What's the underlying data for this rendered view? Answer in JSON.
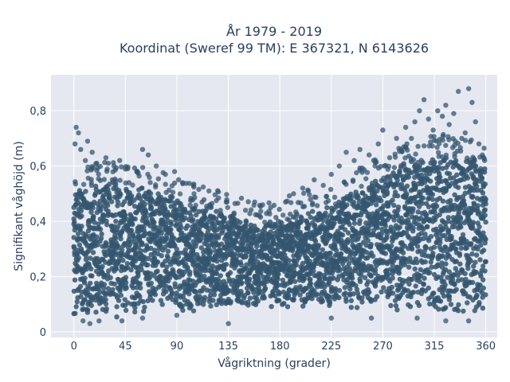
{
  "chart_data": {
    "type": "scatter",
    "title_line1": "År 1979 - 2019",
    "title_line2": "Koordinat (Sweref 99 TM): E 367321, N 6143626",
    "xlabel": "Vågriktning (grader)",
    "ylabel": "Signifikant våghöjd (m)",
    "xlim": [
      -20,
      370
    ],
    "ylim": [
      -0.02,
      0.93
    ],
    "x_ticks": [
      0,
      45,
      90,
      135,
      180,
      225,
      270,
      315,
      360
    ],
    "x_tick_labels": [
      "0",
      "45",
      "90",
      "135",
      "180",
      "225",
      "270",
      "315",
      "360"
    ],
    "y_ticks": [
      0,
      0.2,
      0.4,
      0.6,
      0.8
    ],
    "y_tick_labels": [
      "0",
      "0,2",
      "0,4",
      "0,6",
      "0,8"
    ],
    "grid": true,
    "marker_color": "#34566f",
    "plot_background": "#e5e8f0",
    "envelope_upper": [
      {
        "x": 0,
        "y": 0.5
      },
      {
        "x": 20,
        "y": 0.53
      },
      {
        "x": 45,
        "y": 0.52
      },
      {
        "x": 70,
        "y": 0.5
      },
      {
        "x": 90,
        "y": 0.48
      },
      {
        "x": 110,
        "y": 0.44
      },
      {
        "x": 135,
        "y": 0.41
      },
      {
        "x": 160,
        "y": 0.38
      },
      {
        "x": 180,
        "y": 0.39
      },
      {
        "x": 200,
        "y": 0.42
      },
      {
        "x": 225,
        "y": 0.45
      },
      {
        "x": 250,
        "y": 0.51
      },
      {
        "x": 270,
        "y": 0.55
      },
      {
        "x": 290,
        "y": 0.6
      },
      {
        "x": 315,
        "y": 0.63
      },
      {
        "x": 340,
        "y": 0.62
      },
      {
        "x": 360,
        "y": 0.58
      }
    ],
    "envelope_lower": [
      {
        "x": 0,
        "y": 0.06
      },
      {
        "x": 45,
        "y": 0.07
      },
      {
        "x": 90,
        "y": 0.08
      },
      {
        "x": 135,
        "y": 0.09
      },
      {
        "x": 180,
        "y": 0.1
      },
      {
        "x": 225,
        "y": 0.1
      },
      {
        "x": 270,
        "y": 0.09
      },
      {
        "x": 315,
        "y": 0.07
      },
      {
        "x": 360,
        "y": 0.07
      }
    ],
    "outliers": [
      {
        "x": 2,
        "y": 0.74
      },
      {
        "x": 4,
        "y": 0.72
      },
      {
        "x": 1,
        "y": 0.68
      },
      {
        "x": 6,
        "y": 0.66
      },
      {
        "x": 12,
        "y": 0.69
      },
      {
        "x": 16,
        "y": 0.65
      },
      {
        "x": 10,
        "y": 0.62
      },
      {
        "x": 20,
        "y": 0.61
      },
      {
        "x": 28,
        "y": 0.63
      },
      {
        "x": 35,
        "y": 0.6
      },
      {
        "x": 40,
        "y": 0.62
      },
      {
        "x": 47,
        "y": 0.59
      },
      {
        "x": 55,
        "y": 0.58
      },
      {
        "x": 60,
        "y": 0.66
      },
      {
        "x": 65,
        "y": 0.64
      },
      {
        "x": 72,
        "y": 0.6
      },
      {
        "x": 80,
        "y": 0.57
      },
      {
        "x": 88,
        "y": 0.58
      },
      {
        "x": 95,
        "y": 0.54
      },
      {
        "x": 105,
        "y": 0.5
      },
      {
        "x": 112,
        "y": 0.47
      },
      {
        "x": 120,
        "y": 0.45
      },
      {
        "x": 128,
        "y": 0.44
      },
      {
        "x": 140,
        "y": 0.43
      },
      {
        "x": 150,
        "y": 0.44
      },
      {
        "x": 158,
        "y": 0.47
      },
      {
        "x": 165,
        "y": 0.46
      },
      {
        "x": 172,
        "y": 0.45
      },
      {
        "x": 185,
        "y": 0.47
      },
      {
        "x": 192,
        "y": 0.5
      },
      {
        "x": 200,
        "y": 0.52
      },
      {
        "x": 210,
        "y": 0.55
      },
      {
        "x": 218,
        "y": 0.53
      },
      {
        "x": 225,
        "y": 0.57
      },
      {
        "x": 232,
        "y": 0.6
      },
      {
        "x": 238,
        "y": 0.65
      },
      {
        "x": 245,
        "y": 0.62
      },
      {
        "x": 250,
        "y": 0.66
      },
      {
        "x": 258,
        "y": 0.64
      },
      {
        "x": 262,
        "y": 0.62
      },
      {
        "x": 266,
        "y": 0.68
      },
      {
        "x": 270,
        "y": 0.73
      },
      {
        "x": 276,
        "y": 0.63
      },
      {
        "x": 282,
        "y": 0.7
      },
      {
        "x": 286,
        "y": 0.66
      },
      {
        "x": 290,
        "y": 0.74
      },
      {
        "x": 295,
        "y": 0.7
      },
      {
        "x": 298,
        "y": 0.76
      },
      {
        "x": 302,
        "y": 0.8
      },
      {
        "x": 306,
        "y": 0.84
      },
      {
        "x": 310,
        "y": 0.77
      },
      {
        "x": 314,
        "y": 0.73
      },
      {
        "x": 318,
        "y": 0.8
      },
      {
        "x": 322,
        "y": 0.78
      },
      {
        "x": 325,
        "y": 0.82
      },
      {
        "x": 328,
        "y": 0.75
      },
      {
        "x": 332,
        "y": 0.79
      },
      {
        "x": 336,
        "y": 0.87
      },
      {
        "x": 339,
        "y": 0.7
      },
      {
        "x": 342,
        "y": 0.72
      },
      {
        "x": 345,
        "y": 0.88
      },
      {
        "x": 348,
        "y": 0.83
      },
      {
        "x": 351,
        "y": 0.76
      },
      {
        "x": 354,
        "y": 0.68
      },
      {
        "x": 357,
        "y": 0.64
      },
      {
        "x": 359,
        "y": 0.62
      },
      {
        "x": 8,
        "y": 0.04
      },
      {
        "x": 14,
        "y": 0.03
      },
      {
        "x": 22,
        "y": 0.04
      },
      {
        "x": 42,
        "y": 0.04
      },
      {
        "x": 60,
        "y": 0.05
      },
      {
        "x": 90,
        "y": 0.06
      },
      {
        "x": 135,
        "y": 0.03
      },
      {
        "x": 225,
        "y": 0.05
      },
      {
        "x": 260,
        "y": 0.05
      },
      {
        "x": 300,
        "y": 0.05
      },
      {
        "x": 325,
        "y": 0.04
      },
      {
        "x": 345,
        "y": 0.04
      }
    ]
  }
}
